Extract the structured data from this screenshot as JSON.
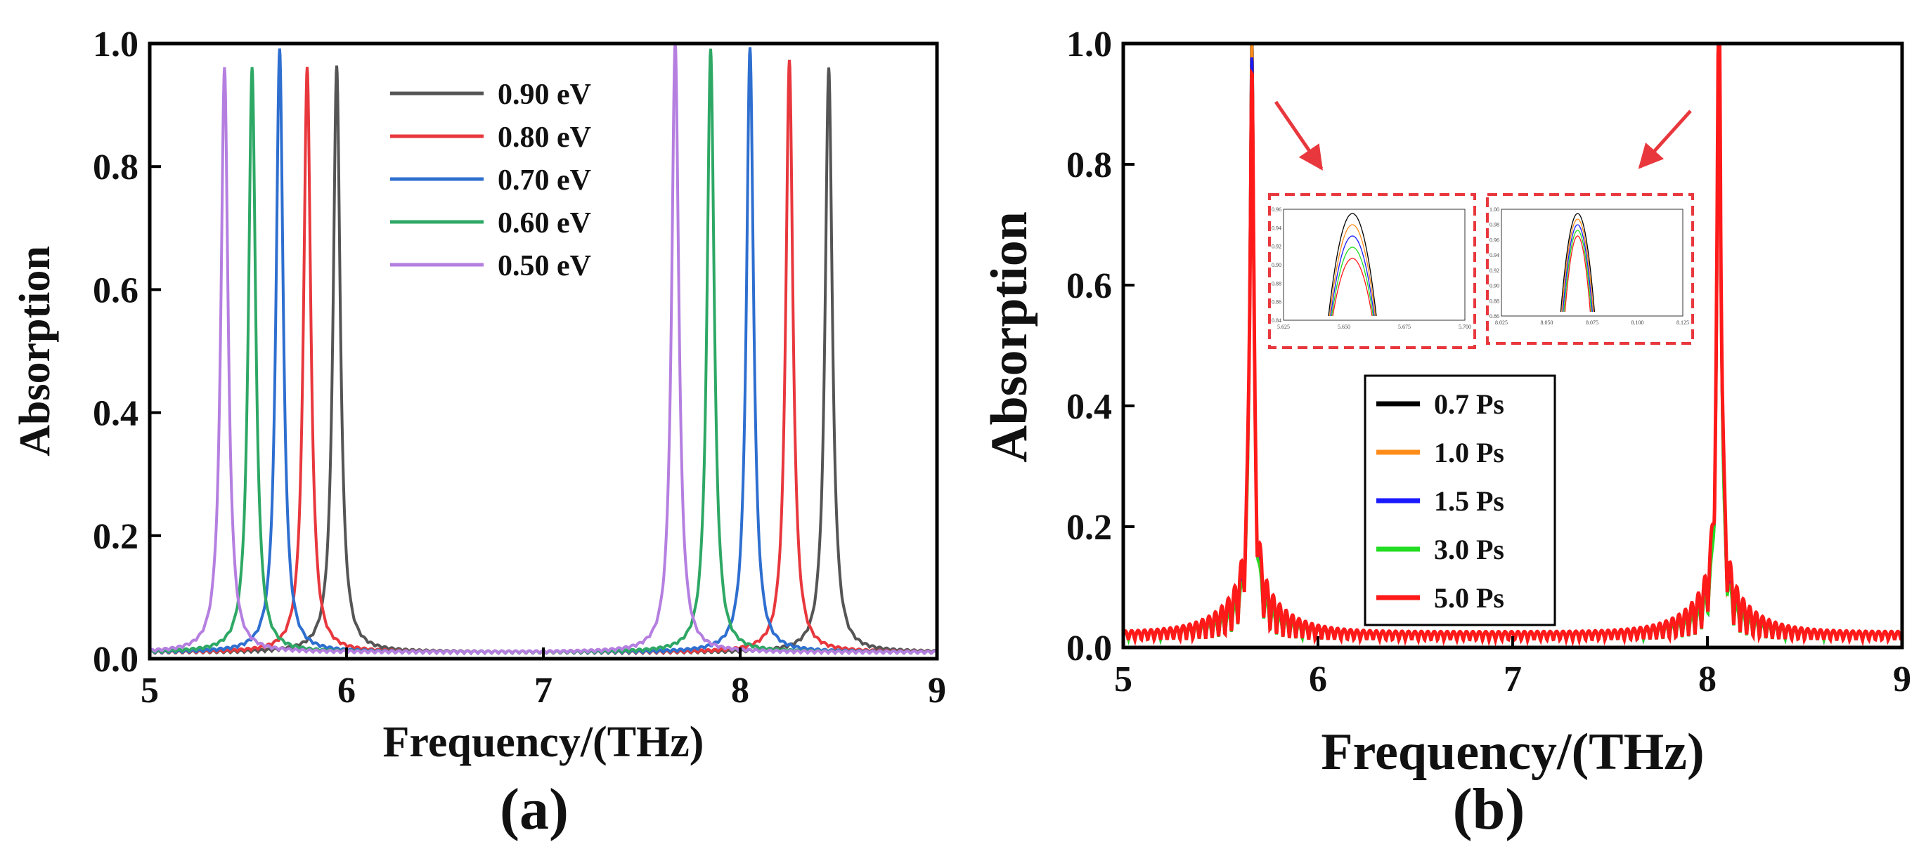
{
  "chart_data": [
    {
      "panel_label": "(a)",
      "type": "line",
      "xlabel": "Frequency/(THz)",
      "ylabel": "Absorption",
      "xlim": [
        5,
        9
      ],
      "ylim": [
        0,
        1.0
      ],
      "xticks": [
        "5",
        "6",
        "7",
        "8",
        "9"
      ],
      "yticks": [
        "0.0",
        "0.2",
        "0.4",
        "0.6",
        "0.8",
        "1.0"
      ],
      "legend_position": "top-center",
      "grid": false,
      "series": [
        {
          "name": "0.90 eV",
          "color": "#555555",
          "peaks": [
            {
              "x": 5.95,
              "y": 0.96
            },
            {
              "x": 8.45,
              "y": 0.96
            }
          ],
          "baseline": 0.008
        },
        {
          "name": "0.80 eV",
          "color": "#e8383d",
          "peaks": [
            {
              "x": 5.8,
              "y": 0.96
            },
            {
              "x": 8.25,
              "y": 0.97
            }
          ],
          "baseline": 0.008
        },
        {
          "name": "0.70 eV",
          "color": "#2e6fd0",
          "peaks": [
            {
              "x": 5.66,
              "y": 0.99
            },
            {
              "x": 8.05,
              "y": 0.99
            }
          ],
          "baseline": 0.008
        },
        {
          "name": "0.60 eV",
          "color": "#2ea865",
          "peaks": [
            {
              "x": 5.52,
              "y": 0.96
            },
            {
              "x": 7.85,
              "y": 0.99
            }
          ],
          "baseline": 0.008
        },
        {
          "name": "0.50 eV",
          "color": "#b57fe0",
          "peaks": [
            {
              "x": 5.38,
              "y": 0.96
            },
            {
              "x": 7.67,
              "y": 1.0
            }
          ],
          "baseline": 0.008
        }
      ]
    },
    {
      "panel_label": "(b)",
      "type": "line",
      "xlabel": "Frequency/(THz)",
      "ylabel": "Absorption",
      "xlim": [
        5,
        9
      ],
      "ylim": [
        0,
        1.0
      ],
      "xticks": [
        "5",
        "6",
        "7",
        "8",
        "9"
      ],
      "yticks": [
        "0.0",
        "0.2",
        "0.4",
        "0.6",
        "0.8",
        "1.0"
      ],
      "legend_position": "bottom-center",
      "grid": false,
      "peaks_x": [
        5.66,
        8.06
      ],
      "series": [
        {
          "name": "0.7 Ps",
          "color": "#000000",
          "peaks": [
            0.98,
            0.99
          ]
        },
        {
          "name": "1.0 Ps",
          "color": "#ff8c1a",
          "peaks": [
            0.95,
            0.99
          ]
        },
        {
          "name": "1.5 Ps",
          "color": "#1a1aff",
          "peaks": [
            0.93,
            0.98
          ]
        },
        {
          "name": "3.0 Ps",
          "color": "#22dd22",
          "peaks": [
            0.9,
            0.97
          ]
        },
        {
          "name": "5.0 Ps",
          "color": "#ff1a1a",
          "peaks": [
            0.88,
            1.0
          ]
        }
      ],
      "insets": [
        {
          "xticks": [
            "5.625",
            "5.650",
            "5.675",
            "5.700"
          ],
          "yticks": [
            "0.84",
            "0.86",
            "0.88",
            "0.90",
            "0.92",
            "0.94",
            "0.96"
          ]
        },
        {
          "xticks": [
            "8.025",
            "8.050",
            "8.075",
            "8.100",
            "8.125"
          ],
          "yticks": [
            "0.86",
            "0.88",
            "0.90",
            "0.92",
            "0.94",
            "0.96",
            "0.98",
            "1.00"
          ]
        }
      ]
    }
  ]
}
